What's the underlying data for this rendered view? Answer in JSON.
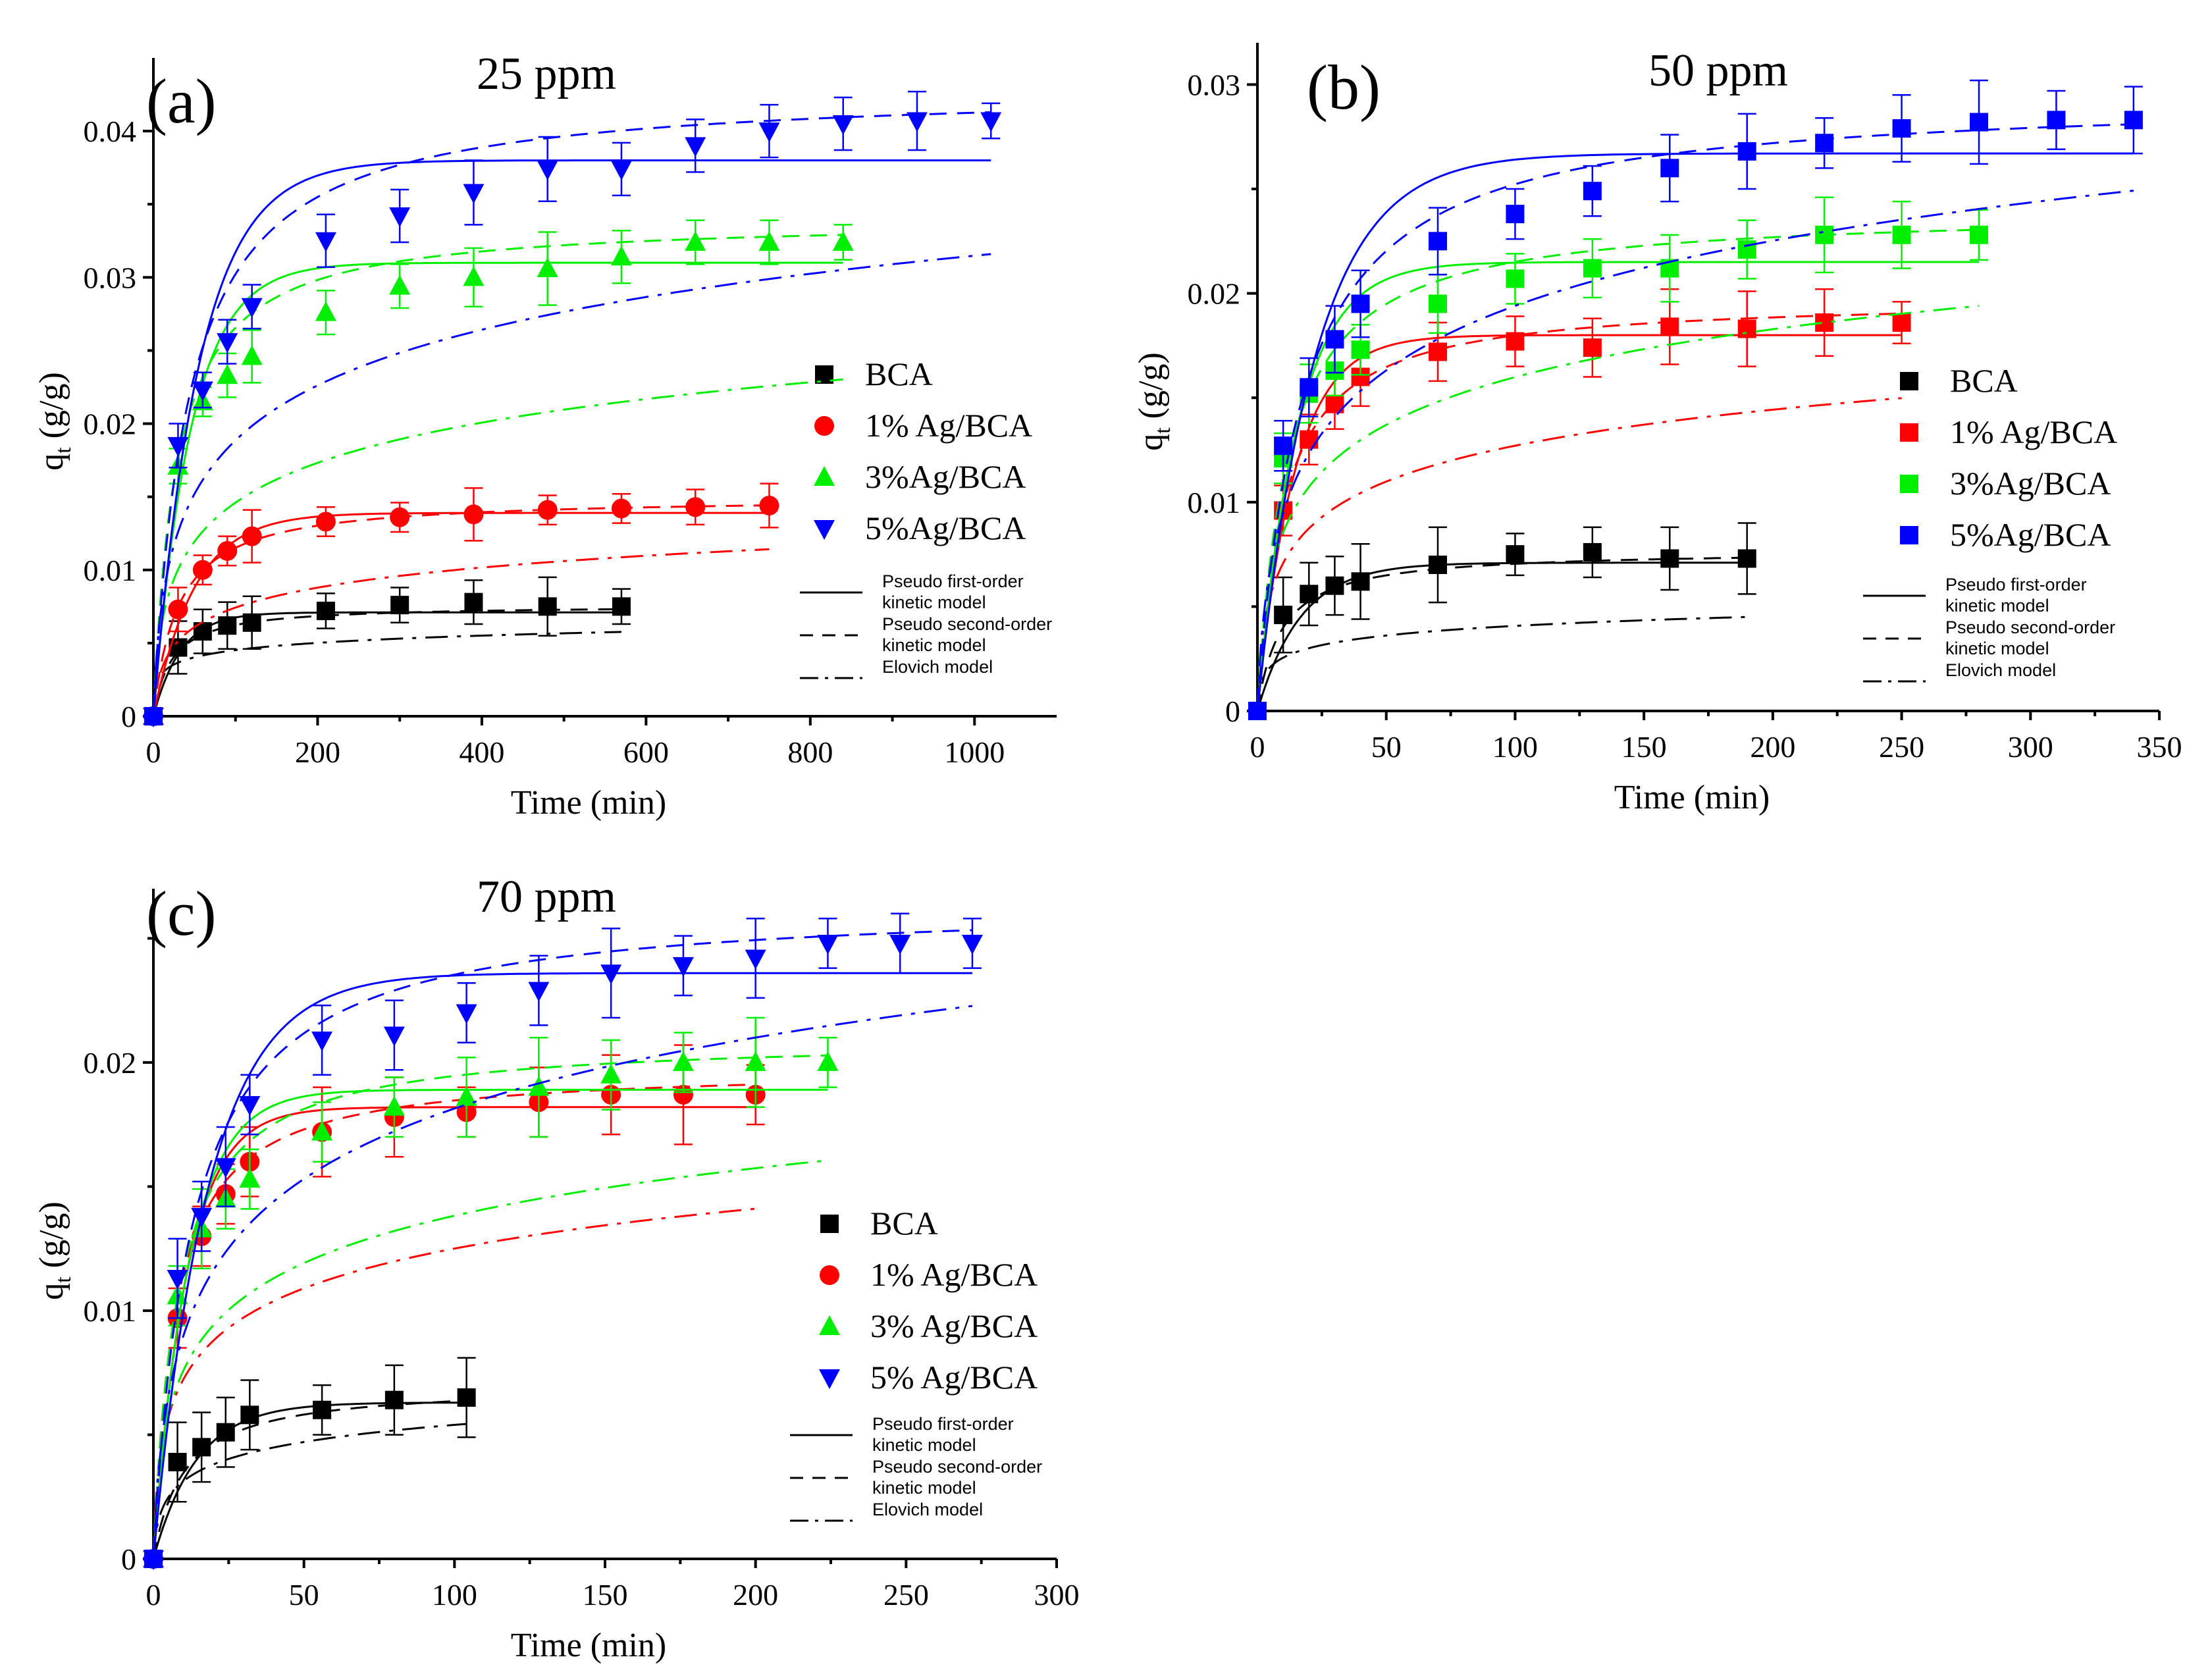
{
  "chart_data": [
    {
      "type": "scatter",
      "panel_label": "(a)",
      "title": "25 ppm",
      "xlabel": "Time (min)",
      "ylabel": "qt (g/g)",
      "ylabel_main": "q",
      "ylabel_sub": "t",
      "ylabel_rest": " (g/g)",
      "xlim": [
        0,
        1100
      ],
      "ylim": [
        0,
        0.045
      ],
      "xticks": [
        0,
        200,
        400,
        600,
        800,
        1000
      ],
      "xtick_labels": [
        "0",
        "200",
        "400",
        "600",
        "800",
        "1000"
      ],
      "yticks": [
        0,
        0.01,
        0.02,
        0.03,
        0.04
      ],
      "ytick_labels": [
        "0",
        "0.01",
        "0.02",
        "0.03",
        "0.04"
      ],
      "legend_position": "right",
      "model_legend": [
        {
          "style": "solid",
          "line1": "Pseudo first-order",
          "line2": "kinetic model"
        },
        {
          "style": "dash",
          "line1": "Pseudo second-order",
          "line2": "kinetic model"
        },
        {
          "style": "dashdot",
          "line1": "Elovich model",
          "line2": ""
        }
      ],
      "series": [
        {
          "name": "BCA",
          "color": "#000000",
          "marker": "square",
          "x": [
            0,
            30,
            60,
            90,
            120,
            210,
            300,
            390,
            480,
            570
          ],
          "y": [
            0,
            0.0047,
            0.0058,
            0.0062,
            0.0064,
            0.0072,
            0.0076,
            0.0078,
            0.0075,
            0.0075
          ],
          "err": [
            0,
            0.0018,
            0.0015,
            0.0016,
            0.0018,
            0.0012,
            0.0012,
            0.0015,
            0.002,
            0.0012
          ],
          "fit": {
            "qe": 0.0071,
            "k1": 0.03,
            "q2": 0.0076,
            "k2": 6.0,
            "a": 0.004,
            "b": 1400,
            "xmax": 570
          }
        },
        {
          "name": "1% Ag/BCA",
          "color": "#ff0000",
          "marker": "circle",
          "x": [
            0,
            30,
            60,
            90,
            120,
            210,
            300,
            390,
            480,
            570,
            660,
            750
          ],
          "y": [
            0,
            0.0073,
            0.01,
            0.0113,
            0.0123,
            0.0133,
            0.0136,
            0.0138,
            0.0141,
            0.0142,
            0.0143,
            0.0144
          ],
          "err": [
            0,
            0.0015,
            0.001,
            0.001,
            0.0018,
            0.001,
            0.001,
            0.0018,
            0.001,
            0.001,
            0.0012,
            0.0015
          ],
          "fit": {
            "qe": 0.0139,
            "k1": 0.02,
            "q2": 0.015,
            "k2": 2.2,
            "a": 0.0008,
            "b": 500,
            "xmax": 750
          }
        },
        {
          "name": "3%Ag/BCA",
          "color": "#00ee00",
          "marker": "triangle-up",
          "x": [
            0,
            30,
            60,
            90,
            120,
            210,
            300,
            390,
            480,
            570,
            660,
            750,
            840
          ],
          "y": [
            0,
            0.0171,
            0.0215,
            0.0233,
            0.0246,
            0.0276,
            0.0294,
            0.03,
            0.0306,
            0.0314,
            0.0324,
            0.0324,
            0.0324
          ],
          "err": [
            0,
            0.0012,
            0.001,
            0.0015,
            0.0018,
            0.0015,
            0.0015,
            0.002,
            0.0025,
            0.0018,
            0.0015,
            0.0015,
            0.0012
          ],
          "fit": {
            "qe": 0.031,
            "k1": 0.022,
            "q2": 0.034,
            "k2": 1.05,
            "a": 0.0015,
            "b": 250,
            "xmax": 840
          }
        },
        {
          "name": "5%Ag/BCA",
          "color": "#0000ff",
          "marker": "triangle-down",
          "x": [
            0,
            30,
            60,
            90,
            120,
            210,
            300,
            390,
            480,
            570,
            660,
            750,
            840,
            930,
            1020
          ],
          "y": [
            0,
            0.0185,
            0.0223,
            0.0256,
            0.028,
            0.0325,
            0.0342,
            0.0358,
            0.0374,
            0.0374,
            0.039,
            0.04,
            0.0405,
            0.0407,
            0.0407
          ],
          "err": [
            0,
            0.0015,
            0.0012,
            0.0015,
            0.0015,
            0.0018,
            0.0018,
            0.0022,
            0.0022,
            0.0018,
            0.0018,
            0.0018,
            0.0018,
            0.002,
            0.0012
          ],
          "fit": {
            "qe": 0.038,
            "k1": 0.018,
            "q2": 0.043,
            "k2": 0.55,
            "a": 0.0016,
            "b": 180,
            "xmax": 1020
          }
        }
      ]
    },
    {
      "type": "scatter",
      "panel_label": "(b)",
      "title": "50 ppm",
      "xlabel": "Time (min)",
      "ylabel": "qt (g/g)",
      "ylabel_main": "q",
      "ylabel_sub": "t",
      "ylabel_rest": " (g/g)",
      "xlim": [
        0,
        350
      ],
      "ylim": [
        0,
        0.032
      ],
      "xticks": [
        0,
        50,
        100,
        150,
        200,
        250,
        300,
        350
      ],
      "xtick_labels": [
        "0",
        "50",
        "100",
        "150",
        "200",
        "250",
        "300",
        "350"
      ],
      "yticks": [
        0,
        0.01,
        0.02,
        0.03
      ],
      "ytick_labels": [
        "0",
        "0.01",
        "0.02",
        "0.03"
      ],
      "legend_position": "right",
      "model_legend": [
        {
          "style": "solid",
          "line1": "Pseudo first-order",
          "line2": "kinetic model"
        },
        {
          "style": "dash",
          "line1": "Pseudo second-order",
          "line2": "kinetic model"
        },
        {
          "style": "dashdot",
          "line1": "Elovich model",
          "line2": ""
        }
      ],
      "series": [
        {
          "name": "BCA",
          "color": "#000000",
          "marker": "square",
          "x": [
            0,
            10,
            20,
            30,
            40,
            70,
            100,
            130,
            160,
            190
          ],
          "y": [
            0,
            0.0046,
            0.0056,
            0.006,
            0.0062,
            0.007,
            0.0075,
            0.0076,
            0.0073,
            0.0073
          ],
          "err": [
            0,
            0.0018,
            0.0015,
            0.0014,
            0.0018,
            0.0018,
            0.001,
            0.0012,
            0.0015,
            0.0017
          ],
          "fit": {
            "qe": 0.0071,
            "k1": 0.06,
            "q2": 0.0077,
            "k2": 14,
            "a": 0.003,
            "b": 1500,
            "xmax": 190
          }
        },
        {
          "name": "1% Ag/BCA",
          "color": "#ff0000",
          "marker": "square",
          "x": [
            0,
            10,
            20,
            30,
            40,
            70,
            100,
            130,
            160,
            190,
            220,
            250
          ],
          "y": [
            0,
            0.0096,
            0.013,
            0.0147,
            0.016,
            0.0172,
            0.0177,
            0.0174,
            0.0184,
            0.0183,
            0.0186,
            0.0186
          ],
          "err": [
            0,
            0.0012,
            0.0012,
            0.0012,
            0.0014,
            0.0014,
            0.0012,
            0.0014,
            0.0018,
            0.0018,
            0.0016,
            0.001
          ],
          "fit": {
            "qe": 0.018,
            "k1": 0.07,
            "q2": 0.0198,
            "k2": 5.0,
            "a": 0.004,
            "b": 400,
            "xmax": 250
          }
        },
        {
          "name": "3%Ag/BCA",
          "color": "#00ee00",
          "marker": "square",
          "x": [
            0,
            10,
            20,
            30,
            40,
            70,
            100,
            130,
            160,
            190,
            220,
            250,
            280
          ],
          "y": [
            0,
            0.0121,
            0.0152,
            0.0163,
            0.0173,
            0.0195,
            0.0207,
            0.0212,
            0.0212,
            0.0221,
            0.0228,
            0.0228,
            0.0228
          ],
          "err": [
            0,
            0.0012,
            0.0014,
            0.0012,
            0.0012,
            0.0014,
            0.0012,
            0.0014,
            0.0016,
            0.0014,
            0.0018,
            0.0016,
            0.0012
          ],
          "fit": {
            "qe": 0.0215,
            "k1": 0.065,
            "q2": 0.024,
            "k2": 3.6,
            "a": 0.004,
            "b": 300,
            "xmax": 280
          }
        },
        {
          "name": "5%Ag/BCA",
          "color": "#0000ff",
          "marker": "square",
          "x": [
            0,
            10,
            20,
            30,
            40,
            70,
            100,
            130,
            160,
            190,
            220,
            250,
            280,
            310,
            340
          ],
          "y": [
            0,
            0.0127,
            0.0155,
            0.0178,
            0.0195,
            0.0225,
            0.0238,
            0.0249,
            0.026,
            0.0268,
            0.0272,
            0.0279,
            0.0282,
            0.0283,
            0.0283
          ],
          "err": [
            0,
            0.0012,
            0.0014,
            0.0016,
            0.0016,
            0.0016,
            0.0012,
            0.0012,
            0.0016,
            0.0018,
            0.0012,
            0.0016,
            0.002,
            0.0014,
            0.0016
          ],
          "fit": {
            "qe": 0.0267,
            "k1": 0.045,
            "q2": 0.0295,
            "k2": 2.0,
            "a": 0.0032,
            "b": 220,
            "xmax": 340
          }
        }
      ]
    },
    {
      "type": "scatter",
      "panel_label": "(c)",
      "title": "70 ppm",
      "xlabel": "Time (min)",
      "ylabel": "qt (g/g)",
      "ylabel_main": "q",
      "ylabel_sub": "t",
      "ylabel_rest": " (g/g)",
      "xlim": [
        0,
        300
      ],
      "ylim": [
        0,
        0.027
      ],
      "xticks": [
        0,
        50,
        100,
        150,
        200,
        250,
        300
      ],
      "xtick_labels": [
        "0",
        "50",
        "100",
        "150",
        "200",
        "250",
        "300"
      ],
      "yticks": [
        0,
        0.01,
        0.02
      ],
      "ytick_labels": [
        "0",
        "0.01",
        "0.02"
      ],
      "legend_position": "right",
      "model_legend": [
        {
          "style": "solid",
          "line1": "Pseudo first-order",
          "line2": "kinetic model"
        },
        {
          "style": "dash",
          "line1": "Pseudo second-order",
          "line2": "kinetic model"
        },
        {
          "style": "dashdot",
          "line1": "Elovich model",
          "line2": ""
        }
      ],
      "series": [
        {
          "name": "BCA",
          "color": "#000000",
          "marker": "square",
          "x": [
            0,
            8,
            16,
            24,
            32,
            56,
            80,
            104
          ],
          "y": [
            0,
            0.0039,
            0.0045,
            0.0051,
            0.0058,
            0.006,
            0.0064,
            0.0065
          ],
          "err": [
            0,
            0.0016,
            0.0014,
            0.0014,
            0.0014,
            0.001,
            0.0014,
            0.0016
          ],
          "fit": {
            "qe": 0.0063,
            "k1": 0.07,
            "q2": 0.007,
            "k2": 14,
            "a": 0.0022,
            "b": 1000,
            "xmax": 104
          }
        },
        {
          "name": "1% Ag/BCA",
          "color": "#ff0000",
          "marker": "circle",
          "x": [
            0,
            8,
            16,
            24,
            32,
            56,
            80,
            104,
            128,
            152,
            176,
            200
          ],
          "y": [
            0,
            0.0097,
            0.013,
            0.0147,
            0.016,
            0.0172,
            0.0178,
            0.018,
            0.0184,
            0.0187,
            0.0187,
            0.0187
          ],
          "err": [
            0,
            0.0012,
            0.0012,
            0.0012,
            0.0014,
            0.0018,
            0.0016,
            0.001,
            0.0014,
            0.0016,
            0.002,
            0.0012
          ],
          "fit": {
            "qe": 0.0182,
            "k1": 0.09,
            "q2": 0.0198,
            "k2": 7.0,
            "a": 0.005,
            "b": 430,
            "xmax": 200
          }
        },
        {
          "name": "3% Ag/BCA",
          "color": "#00ee00",
          "marker": "triangle-up",
          "x": [
            0,
            8,
            16,
            24,
            32,
            56,
            80,
            104,
            128,
            152,
            176,
            200,
            224
          ],
          "y": [
            0,
            0.0106,
            0.0133,
            0.0145,
            0.0153,
            0.0172,
            0.0182,
            0.0186,
            0.019,
            0.0195,
            0.02,
            0.02,
            0.02
          ],
          "err": [
            0,
            0.0012,
            0.0016,
            0.0012,
            0.0012,
            0.0012,
            0.0012,
            0.0016,
            0.002,
            0.0014,
            0.0012,
            0.0018,
            0.001
          ],
          "fit": {
            "qe": 0.0189,
            "k1": 0.085,
            "q2": 0.021,
            "k2": 6.0,
            "a": 0.004,
            "b": 360,
            "xmax": 224
          }
        },
        {
          "name": "5% Ag/BCA",
          "color": "#0000ff",
          "marker": "triangle-down",
          "x": [
            0,
            8,
            16,
            24,
            32,
            56,
            80,
            104,
            128,
            152,
            176,
            200,
            224,
            248,
            272
          ],
          "y": [
            0,
            0.0113,
            0.0138,
            0.0158,
            0.0183,
            0.0209,
            0.0211,
            0.022,
            0.0229,
            0.0236,
            0.0239,
            0.0242,
            0.0248,
            0.0248,
            0.0248
          ],
          "err": [
            0,
            0.0016,
            0.0014,
            0.0016,
            0.0012,
            0.0014,
            0.0014,
            0.0012,
            0.0014,
            0.0018,
            0.0012,
            0.0016,
            0.001,
            0.0012,
            0.001
          ],
          "fit": {
            "qe": 0.0236,
            "k1": 0.055,
            "q2": 0.0265,
            "k2": 3.0,
            "a": 0.0032,
            "b": 240,
            "xmax": 272
          }
        }
      ]
    }
  ]
}
